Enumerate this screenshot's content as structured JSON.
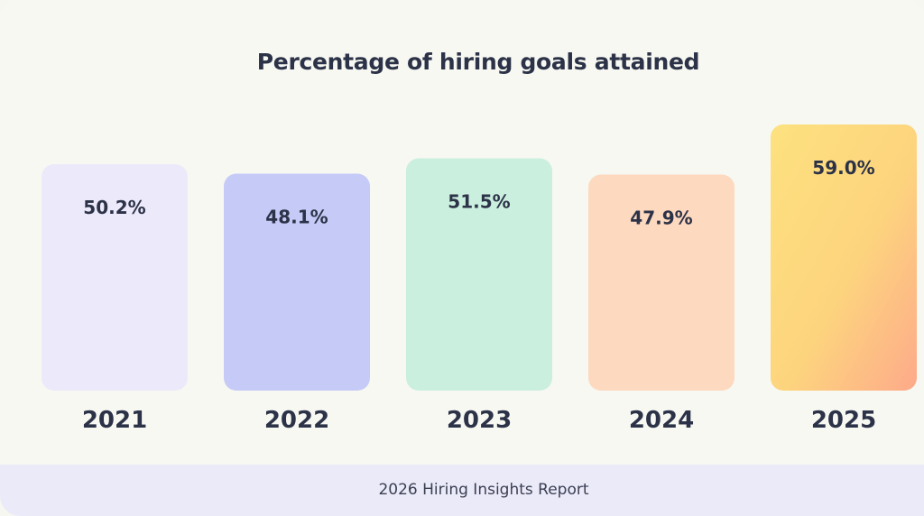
{
  "chart_data": {
    "type": "bar",
    "title": "Percentage of hiring goals attained",
    "categories": [
      "2021",
      "2022",
      "2023",
      "2024",
      "2025"
    ],
    "values": [
      50.2,
      48.1,
      51.5,
      47.9,
      59.0
    ],
    "data_labels": [
      "50.2%",
      "48.1%",
      "51.5%",
      "47.9%",
      "59.0%"
    ],
    "colors": [
      "#ece9fb",
      "#c5cbf6",
      "#cbefdf",
      "#fdd9bf",
      "#fdd77c"
    ],
    "last_bar_gradient": [
      "#fde17f",
      "#fdb486"
    ],
    "xlabel": "",
    "ylabel": "",
    "grid": false,
    "legend": "none"
  },
  "footer": {
    "text": "2026 Hiring Insights Report"
  }
}
